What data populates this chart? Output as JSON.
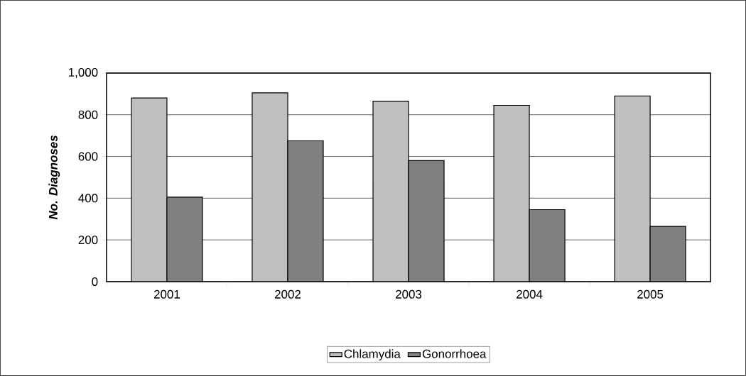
{
  "chart_data": {
    "type": "bar",
    "ylabel": "No. Diagnoses",
    "categories": [
      "2001",
      "2002",
      "2003",
      "2004",
      "2005"
    ],
    "series": [
      {
        "name": "Chlamydia",
        "color": "#c0c0c0",
        "values": [
          880,
          905,
          865,
          845,
          890
        ]
      },
      {
        "name": "Gonorrhoea",
        "color": "#808080",
        "values": [
          405,
          675,
          580,
          345,
          265
        ]
      }
    ],
    "ylim": [
      0,
      1000
    ],
    "yticks": [
      0,
      200,
      400,
      600,
      800,
      {
        "value": 1000,
        "label": "1,000"
      }
    ],
    "grid": "y",
    "legend": "bottom"
  }
}
